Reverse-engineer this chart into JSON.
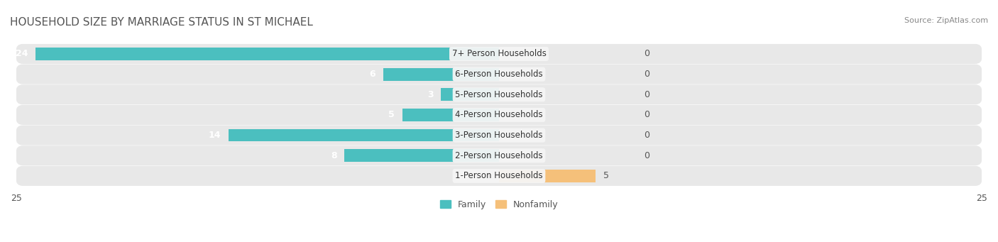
{
  "title": "HOUSEHOLD SIZE BY MARRIAGE STATUS IN ST MICHAEL",
  "source": "Source: ZipAtlas.com",
  "categories": [
    "7+ Person Households",
    "6-Person Households",
    "5-Person Households",
    "4-Person Households",
    "3-Person Households",
    "2-Person Households",
    "1-Person Households"
  ],
  "family_values": [
    24,
    6,
    3,
    5,
    14,
    8,
    0
  ],
  "nonfamily_values": [
    0,
    0,
    0,
    0,
    0,
    0,
    5
  ],
  "family_color": "#4BBFBF",
  "nonfamily_color": "#F5C07A",
  "xlim": [
    -25,
    25
  ],
  "background_color": "#f0f0f0",
  "bar_bg_color": "#e0e0e0",
  "label_bg_color": "#f5f5f5",
  "title_fontsize": 11,
  "source_fontsize": 8,
  "bar_label_fontsize": 9,
  "category_fontsize": 8.5,
  "axis_label_fontsize": 9
}
